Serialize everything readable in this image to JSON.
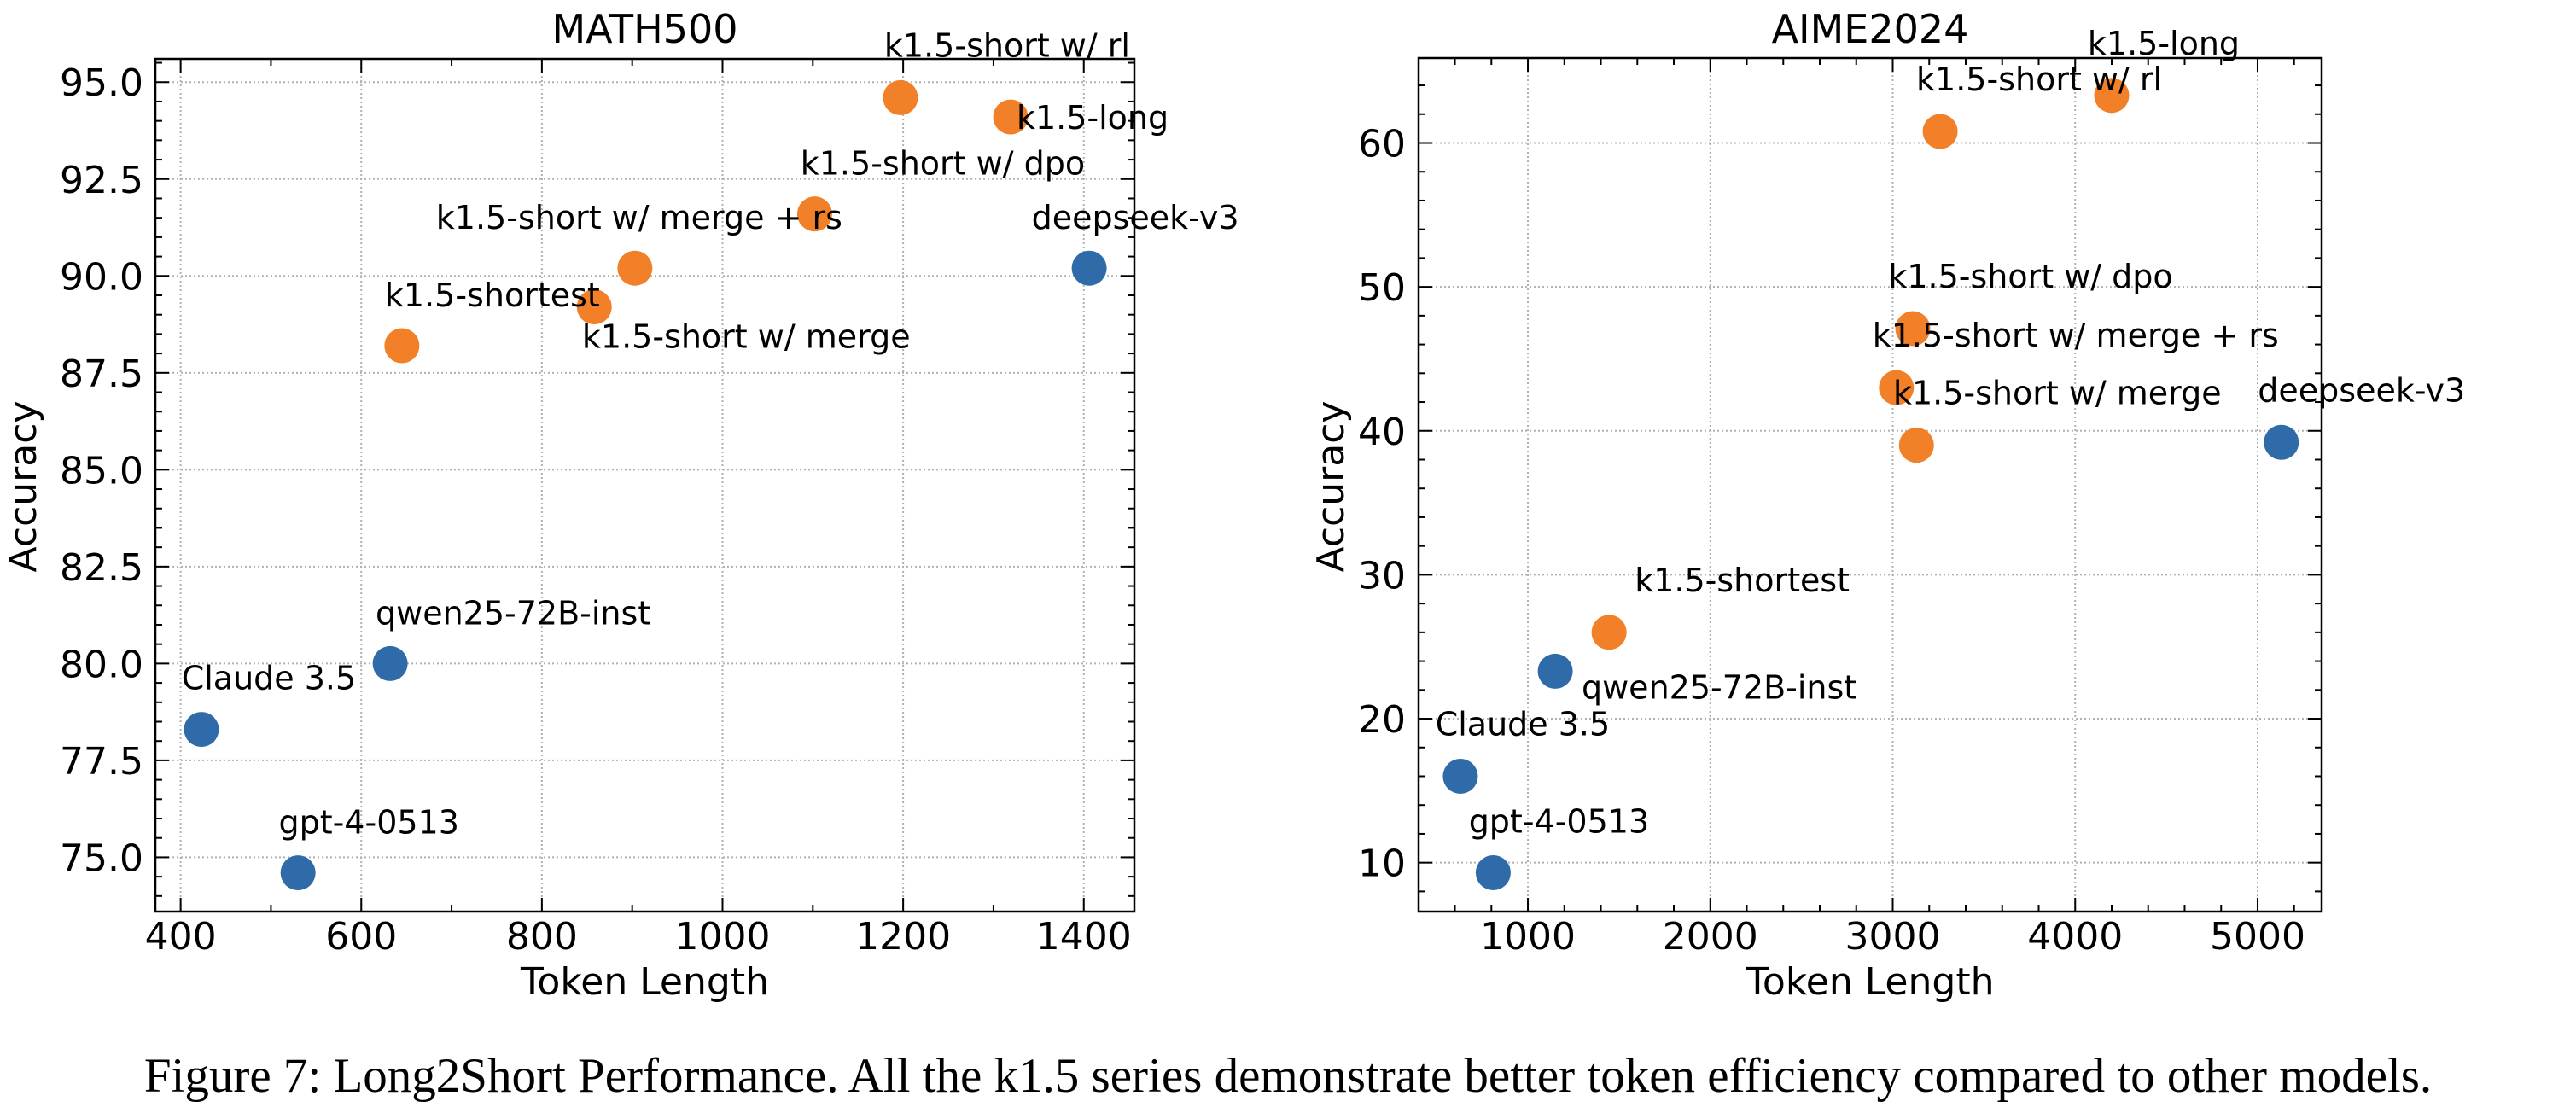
{
  "caption": "Figure 7: Long2Short Performance. All the k1.5 series demonstrate better token efficiency compared to other models.",
  "colors": {
    "k1.5": "#F28028",
    "other": "#2E6BA8"
  },
  "chart_data": [
    {
      "type": "scatter",
      "title": "MATH500",
      "xlabel": "Token Length",
      "ylabel": "Accuracy",
      "xlim": [
        372,
        1456
      ],
      "ylim": [
        73.6,
        95.6
      ],
      "xticks": [
        400,
        600,
        800,
        1000,
        1200,
        1400
      ],
      "xtick_labels": [
        "400",
        "600",
        "800",
        "1000",
        "1200",
        "1400"
      ],
      "yticks": [
        75,
        77.5,
        80,
        82.5,
        85,
        87.5,
        90,
        92.5,
        95
      ],
      "ytick_labels": [
        "75.0",
        "77.5",
        "80.0",
        "82.5",
        "85.0",
        "87.5",
        "90.0",
        "92.5",
        "95.0"
      ],
      "grid": true,
      "points": [
        {
          "label": "Claude 3.5",
          "x": 423,
          "y": 78.3,
          "color": "#2E6BA8"
        },
        {
          "label": "gpt-4-0513",
          "x": 530,
          "y": 74.6,
          "color": "#2E6BA8"
        },
        {
          "label": "qwen25-72B-inst",
          "x": 632,
          "y": 80.0,
          "color": "#2E6BA8"
        },
        {
          "label": "deepseek-v3",
          "x": 1406,
          "y": 90.2,
          "color": "#2E6BA8"
        },
        {
          "label": "k1.5-shortest",
          "x": 645,
          "y": 88.2,
          "color": "#F28028"
        },
        {
          "label": "k1.5-short w/ merge",
          "x": 858,
          "y": 89.2,
          "color": "#F28028"
        },
        {
          "label": "k1.5-short w/ merge + rs",
          "x": 903,
          "y": 90.2,
          "color": "#F28028"
        },
        {
          "label": "k1.5-short w/ dpo",
          "x": 1102,
          "y": 91.6,
          "color": "#F28028"
        },
        {
          "label": "k1.5-short w/ rl",
          "x": 1197,
          "y": 94.6,
          "color": "#F28028"
        },
        {
          "label": "k1.5-long",
          "x": 1319,
          "y": 94.1,
          "color": "#F28028"
        }
      ]
    },
    {
      "type": "scatter",
      "title": "AIME2024",
      "xlabel": "Token Length",
      "ylabel": "Accuracy",
      "xlim": [
        401,
        5351
      ],
      "ylim": [
        6.6,
        65.9
      ],
      "xticks": [
        1000,
        2000,
        3000,
        4000,
        5000
      ],
      "xtick_labels": [
        "1000",
        "2000",
        "3000",
        "4000",
        "5000"
      ],
      "yticks": [
        10,
        20,
        30,
        40,
        50,
        60
      ],
      "ytick_labels": [
        "10",
        "20",
        "30",
        "40",
        "50",
        "60"
      ],
      "grid": true,
      "points": [
        {
          "label": "Claude 3.5",
          "x": 630,
          "y": 16.0,
          "color": "#2E6BA8"
        },
        {
          "label": "gpt-4-0513",
          "x": 810,
          "y": 9.3,
          "color": "#2E6BA8"
        },
        {
          "label": "qwen25-72B-inst",
          "x": 1150,
          "y": 23.3,
          "color": "#2E6BA8"
        },
        {
          "label": "deepseek-v3",
          "x": 5130,
          "y": 39.2,
          "color": "#2E6BA8"
        },
        {
          "label": "k1.5-shortest",
          "x": 1445,
          "y": 26.0,
          "color": "#F28028"
        },
        {
          "label": "k1.5-short w/ merge",
          "x": 3130,
          "y": 39.0,
          "color": "#F28028"
        },
        {
          "label": "k1.5-short w/ merge + rs",
          "x": 3020,
          "y": 43.0,
          "color": "#F28028"
        },
        {
          "label": "k1.5-short w/ dpo",
          "x": 3110,
          "y": 47.1,
          "color": "#F28028"
        },
        {
          "label": "k1.5-short w/ rl",
          "x": 3260,
          "y": 60.8,
          "color": "#F28028"
        },
        {
          "label": "k1.5-long",
          "x": 4200,
          "y": 63.3,
          "color": "#F28028"
        }
      ]
    }
  ]
}
